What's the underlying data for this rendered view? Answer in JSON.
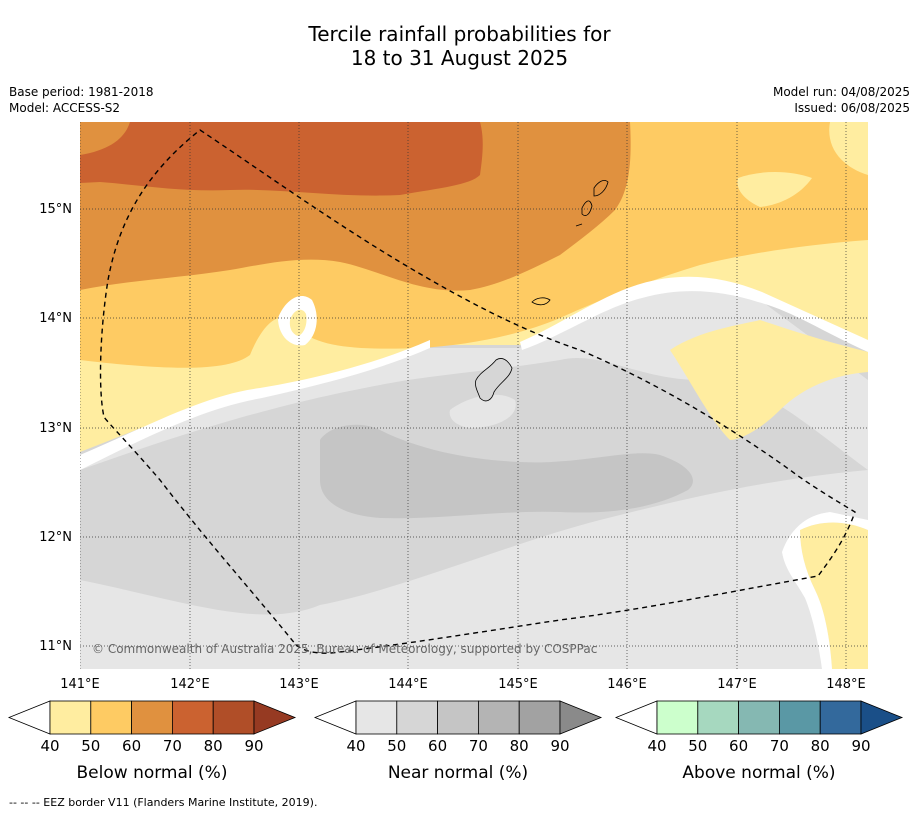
{
  "title": {
    "line1": "Tercile rainfall probabilities for",
    "line2": "18 to 31 August 2025"
  },
  "meta": {
    "base_period": "Base period: 1981-2018",
    "model": "Model: ACCESS-S2",
    "model_run": "Model run: 04/08/2025",
    "issued": "Issued: 06/08/2025"
  },
  "map": {
    "lon_ticks": [
      "141°E",
      "142°E",
      "143°E",
      "144°E",
      "145°E",
      "146°E",
      "147°E",
      "148°E"
    ],
    "lat_ticks": [
      "15°N",
      "14°N",
      "13°N",
      "12°N",
      "11°N"
    ],
    "copyright": "© Commonwealth of Australia 2025, Bureau of Meteorology, supported by COSPPac"
  },
  "colorbars": [
    {
      "label": "Below normal (%)",
      "ticks": [
        "40",
        "50",
        "60",
        "70",
        "80",
        "90"
      ],
      "colors": [
        "#ffeda0",
        "#fecb63",
        "#e0913f",
        "#cb6230",
        "#b04e28",
        "#963a22"
      ]
    },
    {
      "label": "Near normal (%)",
      "ticks": [
        "40",
        "50",
        "60",
        "70",
        "80",
        "90"
      ],
      "colors": [
        "#e6e6e6",
        "#d6d6d6",
        "#c5c5c5",
        "#b4b4b4",
        "#a2a2a2",
        "#8a8a8a"
      ]
    },
    {
      "label": "Above normal (%)",
      "ticks": [
        "40",
        "50",
        "60",
        "70",
        "80",
        "90"
      ],
      "colors": [
        "#ccffcc",
        "#a6d8bf",
        "#85b8b2",
        "#5a98a5",
        "#33699c",
        "#1a4f88"
      ]
    }
  ],
  "footnote": "--  --  -- EEZ border V11 (Flanders Marine Institute, 2019)."
}
